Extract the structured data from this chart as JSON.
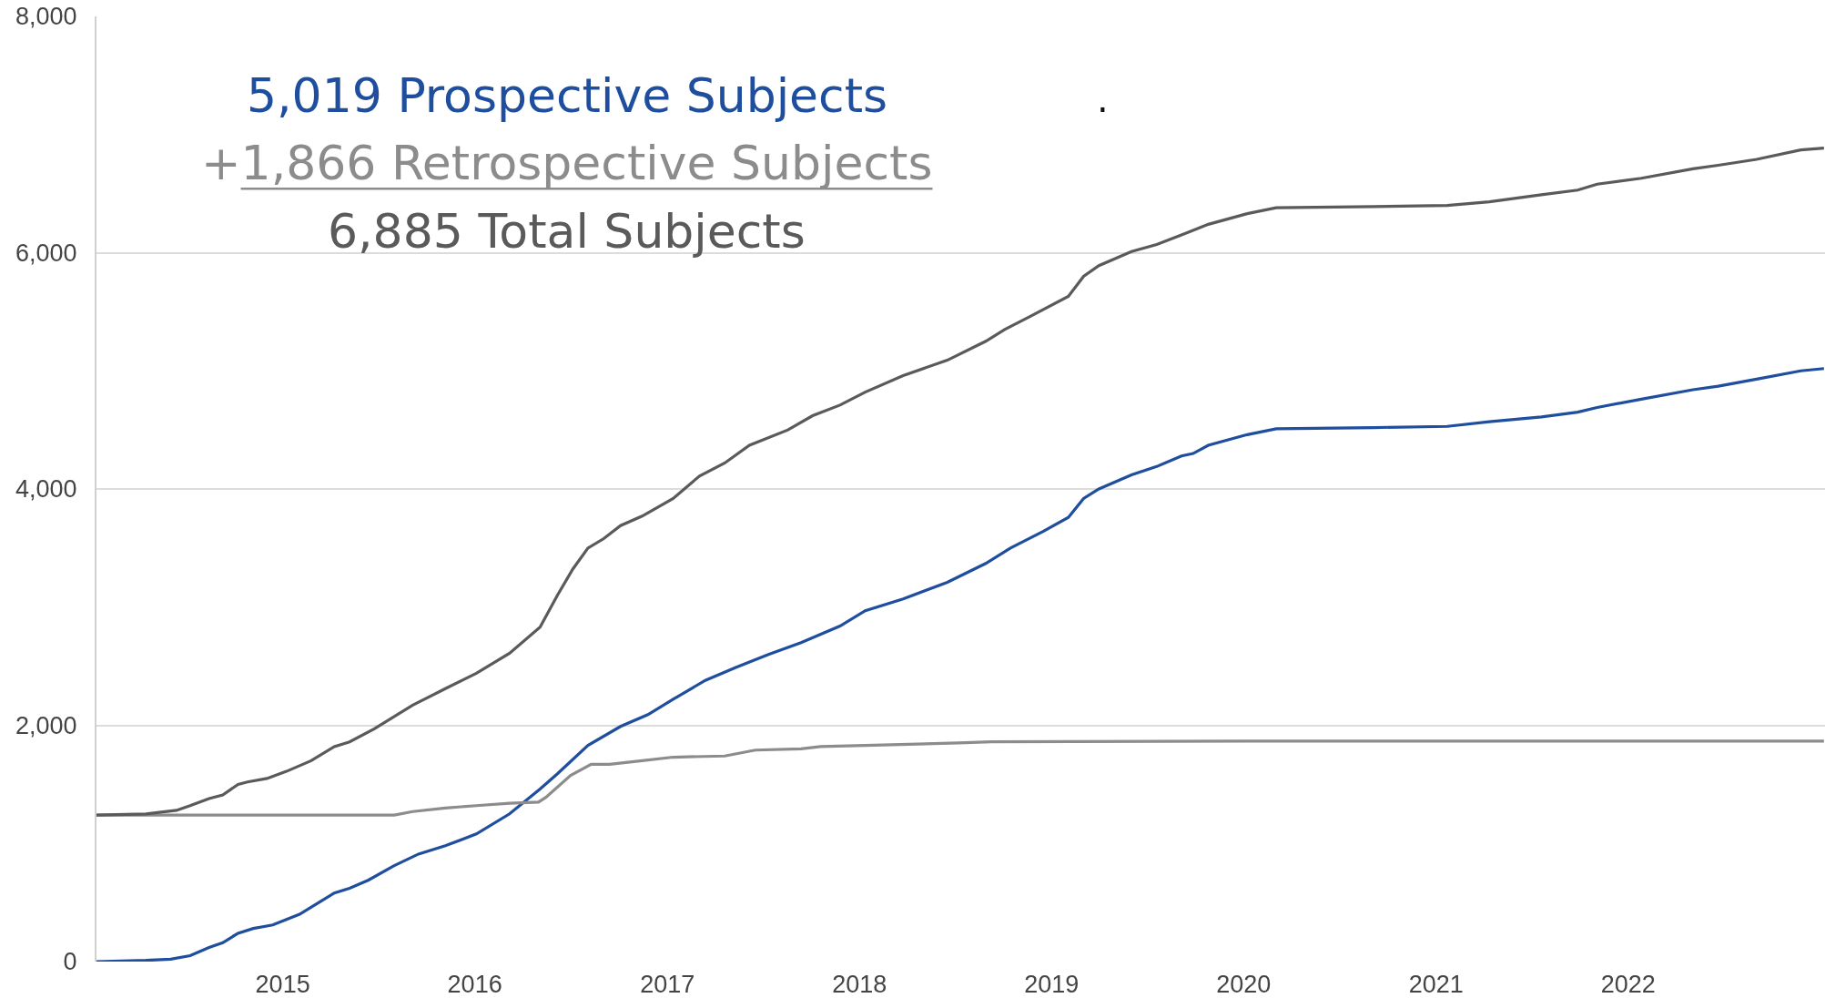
{
  "chart_data": {
    "type": "line",
    "annotations": [
      "."
    ],
    "xlim": [
      "2014-01-12",
      "2023-01-10"
    ],
    "xticks": [
      "2015",
      "2016",
      "2017",
      "2018",
      "2019",
      "2020",
      "2021",
      "2022"
    ],
    "ylim": [
      0,
      8000
    ],
    "yticks": [
      0,
      {
        "value": 2000,
        "label": "2,000"
      },
      {
        "value": 4000,
        "label": "4,000"
      },
      {
        "value": 6000,
        "label": "6,000"
      },
      {
        "value": 8000,
        "label": "8,000"
      }
    ],
    "grid": "y",
    "series": [
      {
        "name": "5,019 Prospective Subjects",
        "color": "#1f4e9e",
        "x": [
          "2014-01-12",
          "2014-04-16",
          "2014-06-02",
          "2014-07-09",
          "2014-08-14",
          "2014-09-09",
          "2014-10-08",
          "2014-11-06",
          "2014-12-13",
          "2015-02-02",
          "2015-03-07",
          "2015-04-09",
          "2015-05-08",
          "2015-06-13",
          "2015-07-31",
          "2015-09-16",
          "2015-11-06",
          "2016-01-04",
          "2016-03-07",
          "2016-05-04",
          "2016-06-06",
          "2016-08-03",
          "2016-10-04",
          "2016-11-25",
          "2017-01-12",
          "2017-03-14",
          "2017-05-11",
          "2017-07-12",
          "2017-09-12",
          "2017-11-25",
          "2018-01-12",
          "2018-03-25",
          "2018-06-17",
          "2018-08-29",
          "2018-10-15",
          "2018-12-16",
          "2019-02-02",
          "2019-03-03",
          "2019-04-01",
          "2019-06-02",
          "2019-07-20",
          "2019-09-05",
          "2019-09-27",
          "2019-10-26",
          "2020-01-08",
          "2020-03-03",
          "2020-09-05",
          "2021-01-22",
          "2021-04-12",
          "2021-07-20",
          "2021-09-27",
          "2021-11-03",
          "2022-01-26",
          "2022-05-04",
          "2022-06-21",
          "2022-09-02",
          "2022-11-25",
          "2023-01-08"
        ],
        "values": [
          0,
          10,
          20,
          50,
          120,
          160,
          240,
          280,
          310,
          400,
          490,
          580,
          620,
          690,
          810,
          910,
          980,
          1080,
          1250,
          1460,
          1590,
          1830,
          1990,
          2090,
          2220,
          2380,
          2490,
          2600,
          2700,
          2840,
          2970,
          3070,
          3210,
          3370,
          3500,
          3640,
          3760,
          3920,
          4000,
          4120,
          4190,
          4280,
          4300,
          4370,
          4460,
          4510,
          4520,
          4530,
          4570,
          4610,
          4650,
          4690,
          4760,
          4840,
          4870,
          4930,
          5000,
          5019
        ]
      },
      {
        "name": "+1,866 Retrospective Subjects",
        "color": "#8c8c8c",
        "x": [
          "2014-01-12",
          "2015-08-01",
          "2015-09-05",
          "2015-11-06",
          "2016-01-04",
          "2016-03-07",
          "2016-05-01",
          "2016-05-15",
          "2016-07-01",
          "2016-08-09",
          "2016-09-13",
          "2016-11-14",
          "2017-01-12",
          "2017-04-20",
          "2017-06-17",
          "2017-09-12",
          "2017-10-19",
          "2018-01-12",
          "2018-07-08",
          "2018-09-09",
          "2020-01-08",
          "2023-01-08"
        ],
        "values": [
          1240,
          1240,
          1270,
          1300,
          1320,
          1340,
          1350,
          1390,
          1575,
          1670,
          1670,
          1700,
          1730,
          1740,
          1790,
          1800,
          1820,
          1830,
          1850,
          1860,
          1866,
          1866
        ]
      },
      {
        "name": "6,885 Total Subjects",
        "color": "#5a5a5a",
        "x": [
          "2014-01-12",
          "2014-04-16",
          "2014-06-13",
          "2014-07-09",
          "2014-08-14",
          "2014-09-09",
          "2014-10-08",
          "2014-10-26",
          "2014-12-02",
          "2015-01-08",
          "2015-02-24",
          "2015-04-09",
          "2015-05-08",
          "2015-06-24",
          "2015-09-05",
          "2015-11-06",
          "2016-01-04",
          "2016-03-07",
          "2016-05-04",
          "2016-06-06",
          "2016-07-05",
          "2016-08-03",
          "2016-09-02",
          "2016-10-04",
          "2016-11-14",
          "2017-01-12",
          "2017-03-03",
          "2017-04-20",
          "2017-06-06",
          "2017-08-18",
          "2017-10-04",
          "2017-11-25",
          "2018-01-12",
          "2018-03-25",
          "2018-06-17",
          "2018-08-29",
          "2018-10-04",
          "2018-11-21",
          "2019-02-02",
          "2019-03-03",
          "2019-04-01",
          "2019-06-02",
          "2019-07-20",
          "2019-09-05",
          "2019-10-26",
          "2020-01-08",
          "2020-03-03",
          "2020-09-05",
          "2021-01-22",
          "2021-04-12",
          "2021-07-20",
          "2021-09-27",
          "2021-11-03",
          "2022-01-26",
          "2022-05-04",
          "2022-06-21",
          "2022-09-02",
          "2022-11-25",
          "2023-01-08"
        ],
        "values": [
          1240,
          1250,
          1280,
          1320,
          1380,
          1410,
          1500,
          1520,
          1550,
          1610,
          1700,
          1820,
          1860,
          1970,
          2170,
          2310,
          2440,
          2610,
          2830,
          3100,
          3320,
          3500,
          3580,
          3690,
          3770,
          3920,
          4110,
          4220,
          4370,
          4500,
          4620,
          4710,
          4820,
          4960,
          5090,
          5250,
          5350,
          5460,
          5630,
          5800,
          5890,
          6010,
          6070,
          6150,
          6240,
          6330,
          6380,
          6390,
          6400,
          6430,
          6490,
          6530,
          6580,
          6630,
          6710,
          6740,
          6790,
          6870,
          6885
        ]
      }
    ]
  }
}
